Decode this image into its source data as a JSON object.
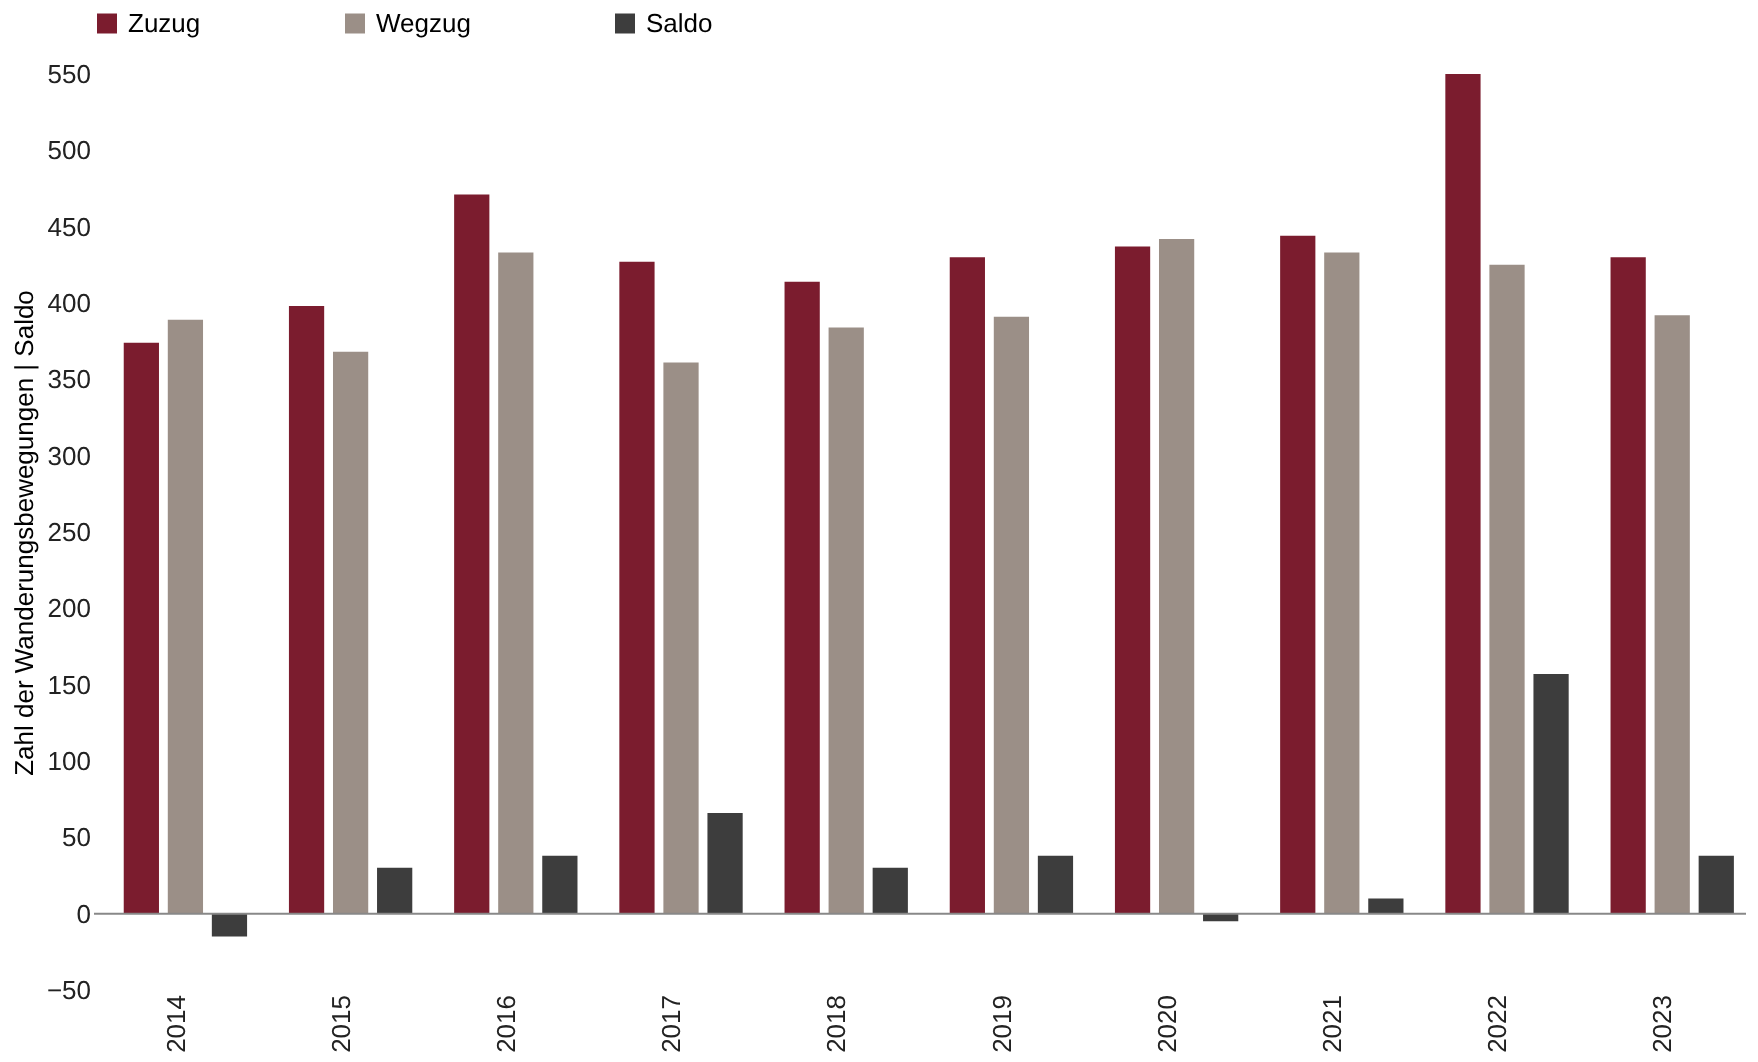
{
  "chart_data": {
    "type": "bar",
    "ylabel": "Zahl der Wanderungsbewegungen | Saldo",
    "categories": [
      "2014",
      "2015",
      "2016",
      "2017",
      "2018",
      "2019",
      "2020",
      "2021",
      "2022",
      "2023"
    ],
    "series": [
      {
        "name": "Zuzug",
        "color": "#7b1c2e",
        "values": [
          374,
          398,
          471,
          427,
          414,
          430,
          437,
          444,
          550,
          430
        ]
      },
      {
        "name": "Wegzug",
        "color": "#9b8f87",
        "values": [
          389,
          368,
          433,
          361,
          384,
          391,
          442,
          433,
          425,
          392
        ]
      },
      {
        "name": "Saldo",
        "color": "#3d3d3d",
        "values": [
          -15,
          30,
          38,
          66,
          30,
          38,
          -5,
          10,
          157,
          38
        ]
      }
    ],
    "ylim": [
      -50,
      550
    ],
    "yticks": [
      -50,
      0,
      50,
      100,
      150,
      200,
      250,
      300,
      350,
      400,
      450,
      500,
      550
    ],
    "grid": false,
    "legend": "top",
    "ref_lines": [
      {
        "axis": "y",
        "value": 0,
        "color": "#888888"
      }
    ]
  }
}
